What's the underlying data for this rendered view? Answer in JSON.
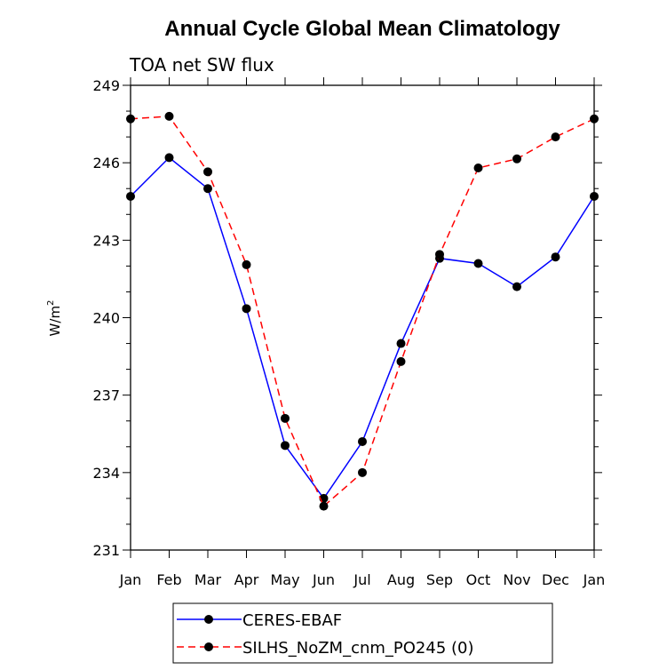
{
  "chart_data": {
    "type": "line",
    "title": "Annual Cycle Global Mean Climatology",
    "subtitle": "TOA net SW flux",
    "ylabel": "W/m",
    "ylabel_exponent": "2",
    "categories": [
      "Jan",
      "Feb",
      "Mar",
      "Apr",
      "May",
      "Jun",
      "Jul",
      "Aug",
      "Sep",
      "Oct",
      "Nov",
      "Dec",
      "Jan"
    ],
    "ylim": [
      231,
      249
    ],
    "yticks": [
      231,
      234,
      237,
      240,
      243,
      246,
      249
    ],
    "yticks_labels": [
      "231",
      "234",
      "237",
      "240",
      "243",
      "246",
      "249"
    ],
    "series": [
      {
        "name": "CERES-EBAF",
        "color": "#0000ff",
        "dash": "solid",
        "values": [
          244.7,
          246.2,
          245.0,
          240.35,
          235.05,
          233.0,
          235.2,
          239.0,
          242.3,
          242.1,
          241.2,
          242.35,
          244.7
        ]
      },
      {
        "name": "SILHS_NoZM_cnm_PO245 (0)",
        "color": "#ff0000",
        "dash": "dashed",
        "values": [
          247.7,
          247.8,
          245.65,
          242.05,
          236.1,
          232.7,
          234.0,
          238.3,
          242.45,
          245.8,
          246.15,
          247.0,
          247.7
        ]
      }
    ],
    "grid": false,
    "legend_position": "bottom"
  }
}
